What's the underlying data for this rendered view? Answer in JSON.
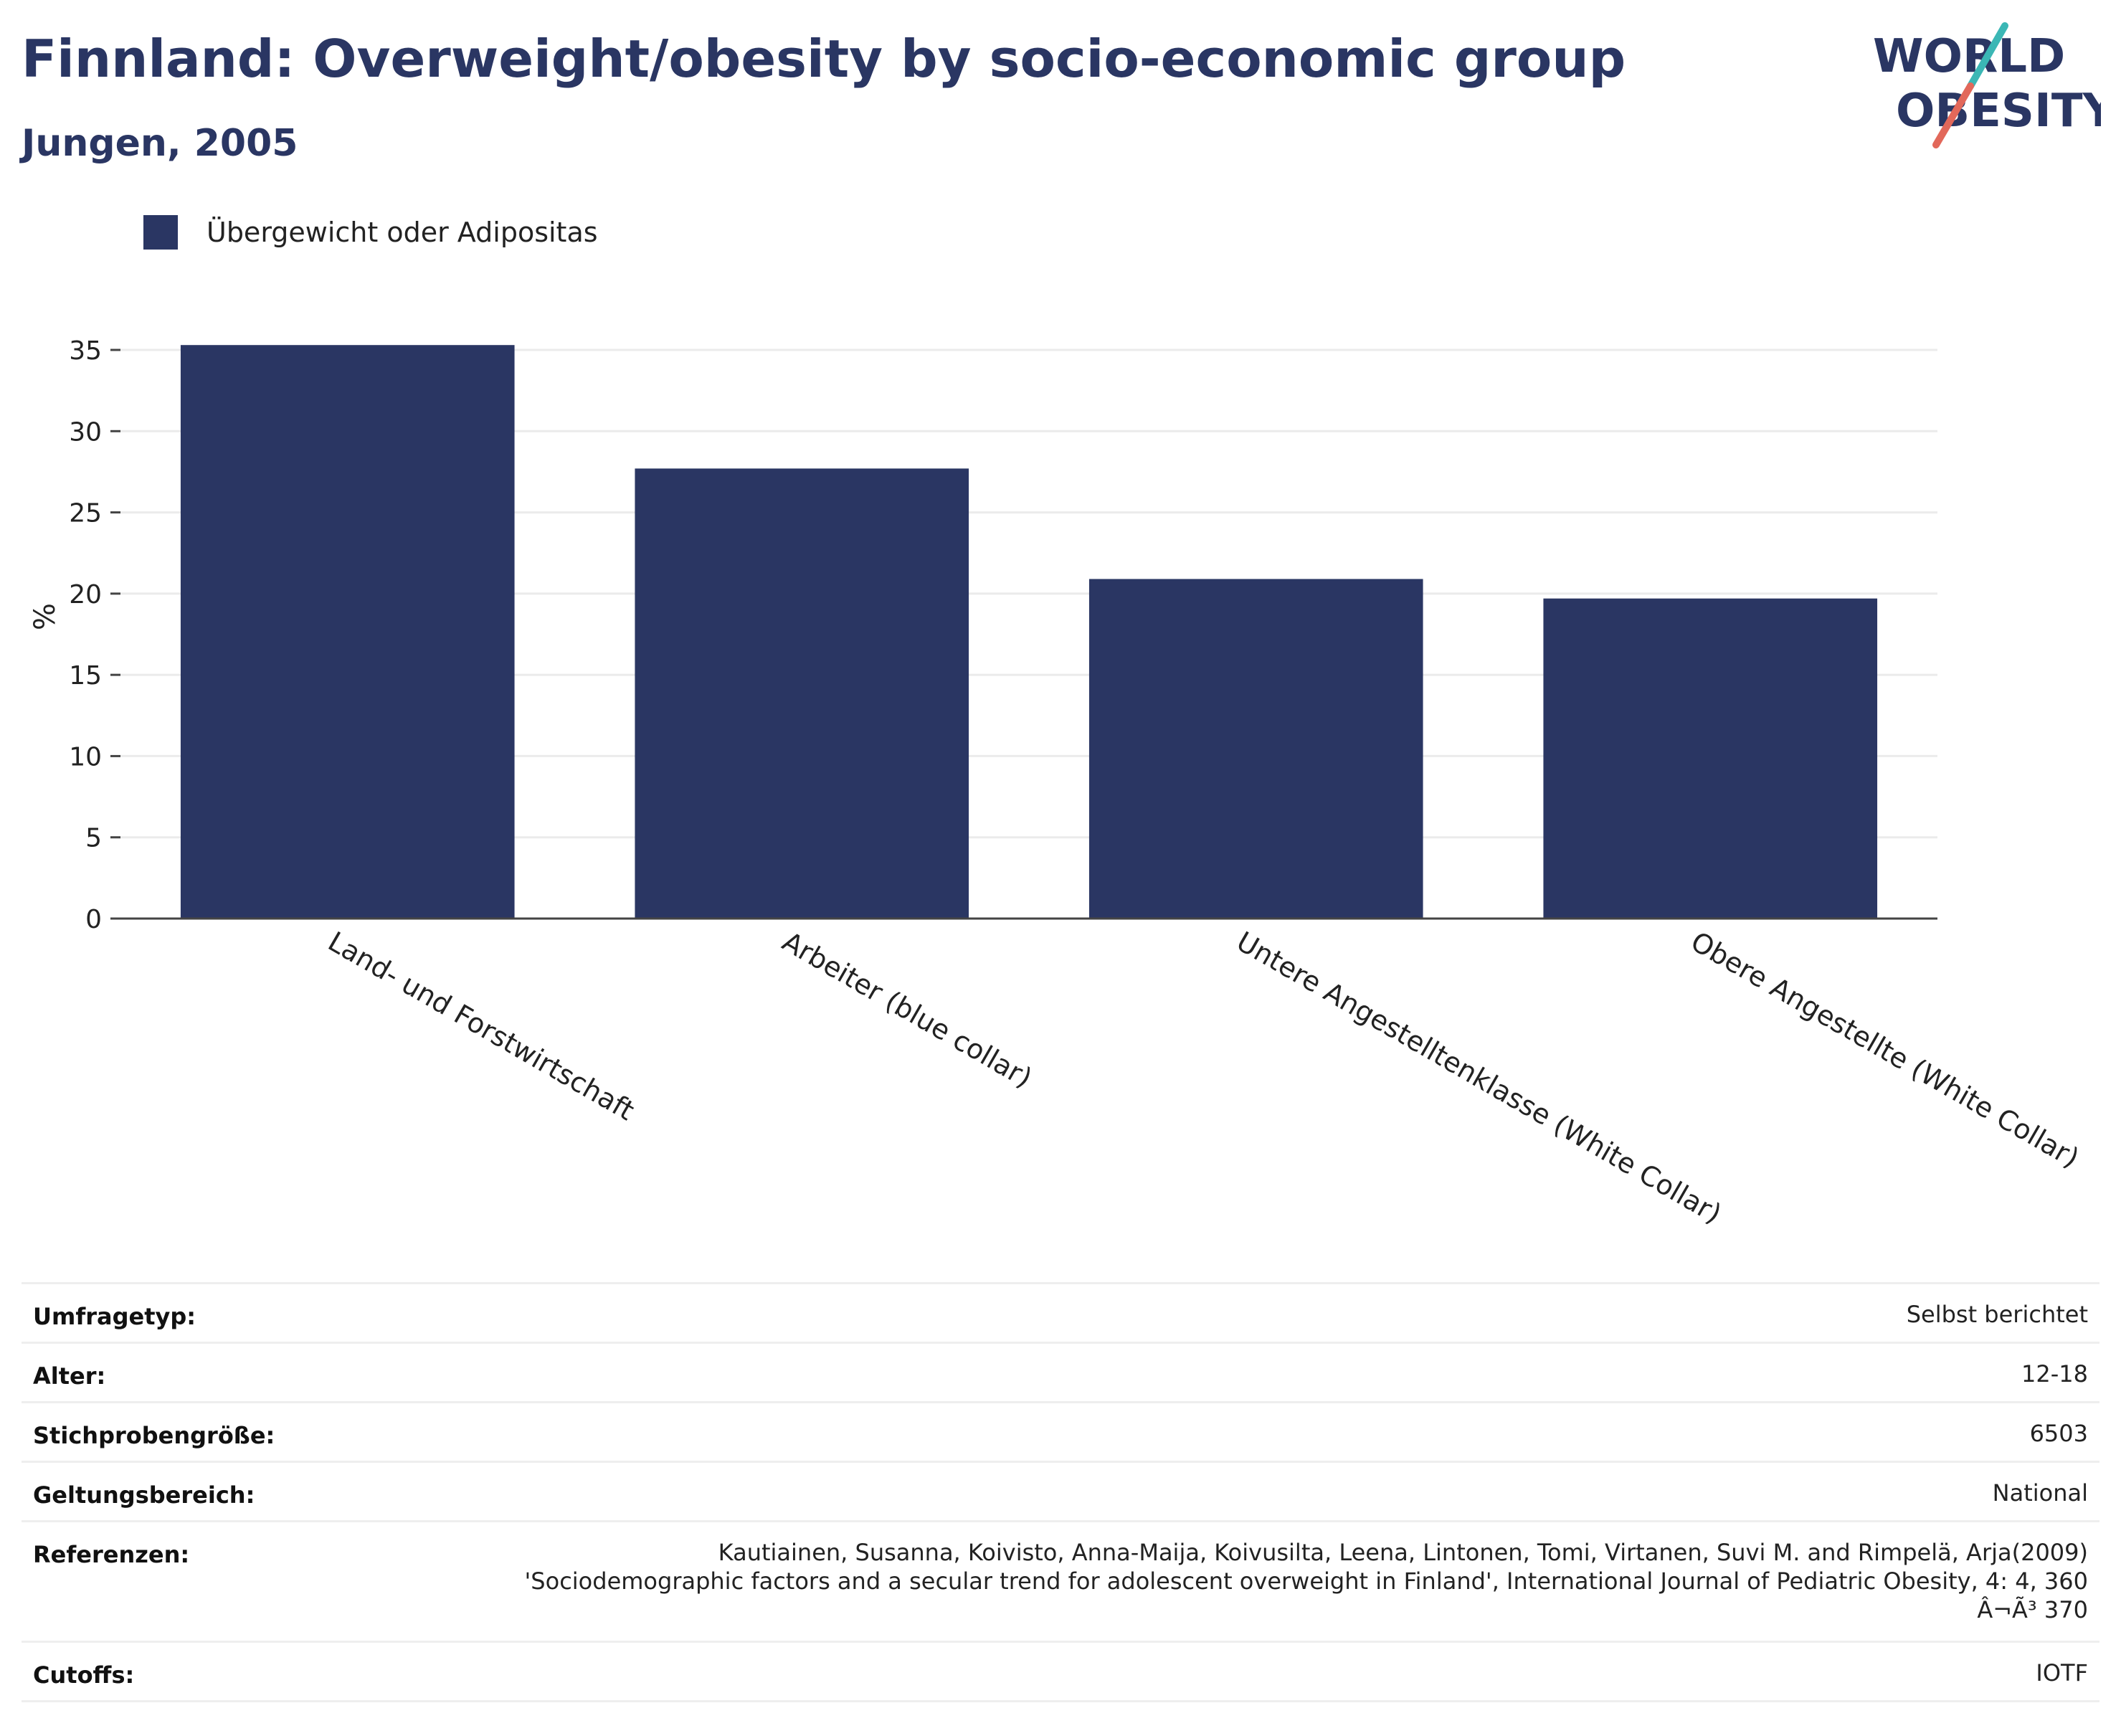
{
  "header": {
    "title": "Finnland: Overweight/obesity by socio-economic group",
    "subtitle": "Jungen, 2005"
  },
  "logo": {
    "line1": "WORLD",
    "line2": "OBESITY",
    "colors": {
      "text": "#2a3663",
      "slash_red": "#e2685a",
      "slash_teal": "#3bb7b5"
    }
  },
  "legend": {
    "label": "Übergewicht oder Adipositas",
    "color": "#2a3663"
  },
  "chart_data": {
    "type": "bar",
    "title": "Finnland: Overweight/obesity by socio-economic group",
    "subtitle": "Jungen, 2005",
    "categories": [
      "Land- und Forstwirtschaft",
      "Arbeiter (blue collar)",
      "Untere Angestelltenklasse (White Collar)",
      "Obere Angestellte (White Collar)"
    ],
    "series": [
      {
        "name": "Übergewicht oder Adipositas",
        "values": [
          35.3,
          27.7,
          20.9,
          19.7
        ],
        "color": "#2a3663"
      }
    ],
    "ylabel": "%",
    "ylim": [
      0,
      35
    ],
    "yticks": [
      0,
      5,
      10,
      15,
      20,
      25,
      30,
      35
    ],
    "grid": true,
    "legend_position": "top-left"
  },
  "info": {
    "rows": [
      {
        "key": "Umfragetyp:",
        "value": "Selbst berichtet"
      },
      {
        "key": "Alter:",
        "value": "12-18"
      },
      {
        "key": "Stichprobengröße:",
        "value": "6503"
      },
      {
        "key": "Geltungsbereich:",
        "value": "National"
      }
    ],
    "references": {
      "key": "Referenzen:",
      "lines": [
        "Kautiainen, Susanna, Koivisto, Anna-Maija, Koivusilta, Leena, Lintonen, Tomi, Virtanen, Suvi M. and Rimpelä, Arja(2009)",
        "'Sociodemographic factors and a secular trend for adolescent overweight in Finland', International Journal of Pediatric Obesity, 4: 4, 360",
        "Â¬Ã³ 370"
      ]
    },
    "cutoffs": {
      "key": "Cutoffs:",
      "value": "IOTF"
    }
  }
}
